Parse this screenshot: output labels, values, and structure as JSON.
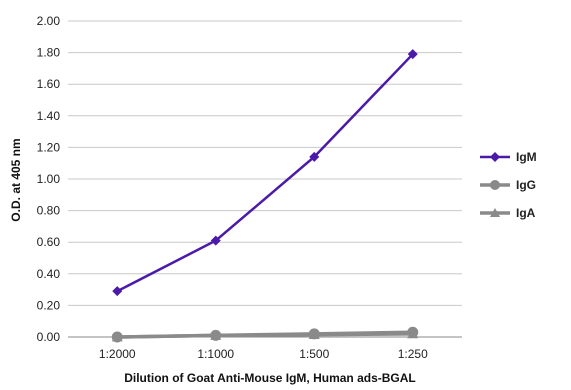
{
  "chart_data": {
    "type": "line",
    "title": "",
    "xlabel": "Dilution of Goat Anti-Mouse IgM, Human ads-BGAL",
    "ylabel": "O.D. at 405 nm",
    "categories": [
      "1:2000",
      "1:1000",
      "1:500",
      "1:250"
    ],
    "ylim": [
      0,
      2.0
    ],
    "yticks": [
      "0.00",
      "0.20",
      "0.40",
      "0.60",
      "0.80",
      "1.00",
      "1.20",
      "1.40",
      "1.60",
      "1.80",
      "2.00"
    ],
    "grid": true,
    "legend_position": "right",
    "series": [
      {
        "name": "IgM",
        "values": [
          0.29,
          0.61,
          1.14,
          1.79
        ],
        "color": "#4b1aa8",
        "marker": "diamond"
      },
      {
        "name": "IgG",
        "values": [
          0.0,
          0.01,
          0.02,
          0.03
        ],
        "color": "#8a8a8a",
        "marker": "circle"
      },
      {
        "name": "IgA",
        "values": [
          0.0,
          0.01,
          0.015,
          0.02
        ],
        "color": "#8a8a8a",
        "marker": "triangle"
      }
    ]
  }
}
